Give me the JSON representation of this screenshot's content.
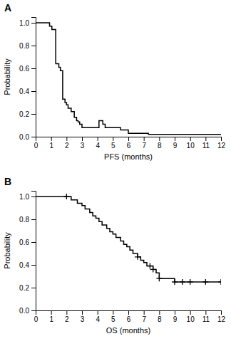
{
  "chart_data": [
    {
      "type": "line",
      "title": "A",
      "xlabel": "PFS (months)",
      "ylabel": "Probability",
      "xlim": [
        0,
        12
      ],
      "ylim": [
        0.0,
        1.05
      ],
      "xticks": [
        0,
        1,
        2,
        3,
        4,
        5,
        6,
        7,
        8,
        9,
        10,
        11,
        12
      ],
      "yticks": [
        {
          "value": 0.0,
          "label": "0.0"
        },
        0.2,
        0.4,
        0.6,
        0.8,
        {
          "value": 1.0,
          "label": "1.0"
        }
      ],
      "series": [
        {
          "line_style": "step",
          "color": "#000000",
          "x": [
            0,
            0.9,
            1.05,
            1.3,
            1.5,
            1.6,
            1.75,
            1.9,
            2.0,
            2.1,
            2.3,
            2.5,
            2.65,
            2.75,
            2.85,
            3.0,
            4.1,
            4.35,
            4.5,
            5.0,
            5.5,
            6.0,
            6.5,
            7.0,
            7.3,
            9.5,
            12.0
          ],
          "values": [
            1.0,
            0.97,
            0.94,
            0.64,
            0.61,
            0.58,
            0.33,
            0.3,
            0.28,
            0.25,
            0.22,
            0.17,
            0.14,
            0.13,
            0.11,
            0.08,
            0.14,
            0.11,
            0.08,
            0.08,
            0.06,
            0.03,
            0.03,
            0.03,
            0.02,
            0.02,
            0.02
          ]
        }
      ]
    },
    {
      "type": "line",
      "title": "B",
      "xlabel": "OS (months)",
      "ylabel": "Probability",
      "xlim": [
        0,
        12
      ],
      "ylim": [
        0.0,
        1.05
      ],
      "xticks": [
        0,
        1,
        2,
        3,
        4,
        5,
        6,
        7,
        8,
        9,
        10,
        11,
        12
      ],
      "yticks": [
        {
          "value": 0.0,
          "label": "0.0"
        },
        0.2,
        0.4,
        0.6,
        0.8,
        {
          "value": 1.0,
          "label": "1.0"
        }
      ],
      "series": [
        {
          "line_style": "step",
          "color": "#000000",
          "x": [
            0,
            2.0,
            2.3,
            2.7,
            3.0,
            3.2,
            3.5,
            3.7,
            3.9,
            4.1,
            4.3,
            4.6,
            4.8,
            5.0,
            5.2,
            5.5,
            5.7,
            5.9,
            6.1,
            6.3,
            6.6,
            6.8,
            7.0,
            7.2,
            7.4,
            7.6,
            7.8,
            8.0,
            8.5,
            9.0,
            9.5,
            10.0,
            11.0,
            12.0
          ],
          "values": [
            1.0,
            1.0,
            0.97,
            0.94,
            0.92,
            0.89,
            0.86,
            0.83,
            0.81,
            0.78,
            0.75,
            0.72,
            0.69,
            0.67,
            0.64,
            0.61,
            0.58,
            0.56,
            0.53,
            0.5,
            0.47,
            0.44,
            0.42,
            0.39,
            0.39,
            0.36,
            0.33,
            0.28,
            0.28,
            0.25,
            0.25,
            0.25,
            0.25,
            0.25
          ]
        },
        {
          "type": "scatter",
          "marker": "plus",
          "color": "#000000",
          "x": [
            2.0,
            6.6,
            7.4,
            7.6,
            8.0,
            9.0,
            9.5,
            10.0,
            11.0,
            12.0
          ],
          "values": [
            1.0,
            0.47,
            0.39,
            0.36,
            0.28,
            0.25,
            0.25,
            0.25,
            0.25,
            0.25
          ]
        }
      ]
    }
  ]
}
